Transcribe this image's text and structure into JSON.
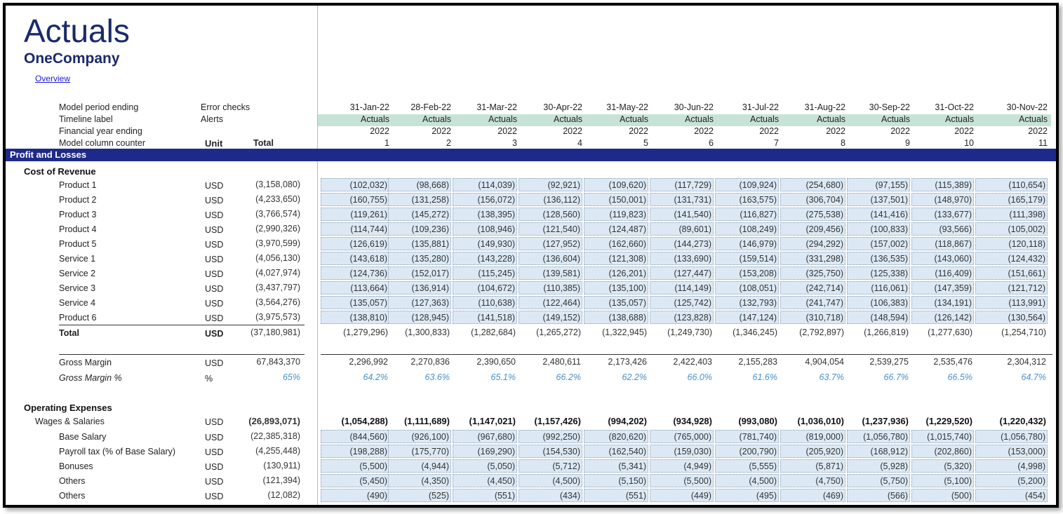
{
  "page": {
    "title": "Actuals",
    "subtitle": "OneCompany",
    "overview_link": "Overview"
  },
  "header": {
    "labels": [
      "Model period ending",
      "Timeline label",
      "Financial year ending",
      "Model column counter"
    ],
    "mid_labels": [
      "Error checks",
      "Alerts"
    ],
    "unit_header": "Unit",
    "total_header": "Total",
    "periods": [
      "31-Jan-22",
      "28-Feb-22",
      "31-Mar-22",
      "30-Apr-22",
      "31-May-22",
      "30-Jun-22",
      "31-Jul-22",
      "31-Aug-22",
      "30-Sep-22",
      "31-Oct-22",
      "30-Nov-22"
    ],
    "timeline": "Actuals",
    "fy": "2022",
    "counters": [
      "1",
      "2",
      "3",
      "4",
      "5",
      "6",
      "7",
      "8",
      "9",
      "10",
      "11"
    ]
  },
  "band": {
    "label": "Profit and Losses"
  },
  "cost_of_revenue": {
    "title": "Cost of Revenue",
    "rows": [
      {
        "label": "Product 1",
        "unit": "USD",
        "total": "(3,158,080)",
        "values": [
          "(102,032)",
          "(98,668)",
          "(114,039)",
          "(92,921)",
          "(109,620)",
          "(117,729)",
          "(109,924)",
          "(254,680)",
          "(97,155)",
          "(115,389)",
          "(110,654)"
        ]
      },
      {
        "label": "Product 2",
        "unit": "USD",
        "total": "(4,233,650)",
        "values": [
          "(160,755)",
          "(131,258)",
          "(156,072)",
          "(136,112)",
          "(150,001)",
          "(131,731)",
          "(163,575)",
          "(306,704)",
          "(137,501)",
          "(148,970)",
          "(165,179)"
        ]
      },
      {
        "label": "Product 3",
        "unit": "USD",
        "total": "(3,766,574)",
        "values": [
          "(119,261)",
          "(145,272)",
          "(138,395)",
          "(128,560)",
          "(119,823)",
          "(141,540)",
          "(116,827)",
          "(275,538)",
          "(141,416)",
          "(133,677)",
          "(111,398)"
        ]
      },
      {
        "label": "Product 4",
        "unit": "USD",
        "total": "(2,990,326)",
        "values": [
          "(114,744)",
          "(109,236)",
          "(108,946)",
          "(121,540)",
          "(124,487)",
          "(89,601)",
          "(108,249)",
          "(209,456)",
          "(100,833)",
          "(93,566)",
          "(105,002)"
        ]
      },
      {
        "label": "Product 5",
        "unit": "USD",
        "total": "(3,970,599)",
        "values": [
          "(126,619)",
          "(135,881)",
          "(149,930)",
          "(127,952)",
          "(162,660)",
          "(144,273)",
          "(146,979)",
          "(294,292)",
          "(157,002)",
          "(118,867)",
          "(120,118)"
        ]
      },
      {
        "label": "Service 1",
        "unit": "USD",
        "total": "(4,056,130)",
        "values": [
          "(143,618)",
          "(135,280)",
          "(143,228)",
          "(136,604)",
          "(121,308)",
          "(133,690)",
          "(159,514)",
          "(331,298)",
          "(136,535)",
          "(143,060)",
          "(124,432)"
        ]
      },
      {
        "label": "Service 2",
        "unit": "USD",
        "total": "(4,027,974)",
        "values": [
          "(124,736)",
          "(152,017)",
          "(115,245)",
          "(139,581)",
          "(126,201)",
          "(127,447)",
          "(153,208)",
          "(325,750)",
          "(125,338)",
          "(116,409)",
          "(151,661)"
        ]
      },
      {
        "label": "Service 3",
        "unit": "USD",
        "total": "(3,437,797)",
        "values": [
          "(113,664)",
          "(136,914)",
          "(104,672)",
          "(110,385)",
          "(135,100)",
          "(114,149)",
          "(108,051)",
          "(242,714)",
          "(116,061)",
          "(147,359)",
          "(121,712)"
        ]
      },
      {
        "label": "Service 4",
        "unit": "USD",
        "total": "(3,564,276)",
        "values": [
          "(135,057)",
          "(127,363)",
          "(110,638)",
          "(122,464)",
          "(135,057)",
          "(125,742)",
          "(132,793)",
          "(241,747)",
          "(106,383)",
          "(134,191)",
          "(113,991)"
        ]
      },
      {
        "label": "Product 6",
        "unit": "USD",
        "total": "(3,975,573)",
        "values": [
          "(138,810)",
          "(128,945)",
          "(141,518)",
          "(149,152)",
          "(138,688)",
          "(123,828)",
          "(147,124)",
          "(310,718)",
          "(148,594)",
          "(126,142)",
          "(130,564)"
        ]
      }
    ],
    "total": {
      "label": "Total",
      "unit": "USD",
      "total": "(37,180,981)",
      "values": [
        "(1,279,296)",
        "(1,300,833)",
        "(1,282,684)",
        "(1,265,272)",
        "(1,322,945)",
        "(1,249,730)",
        "(1,346,245)",
        "(2,792,897)",
        "(1,266,819)",
        "(1,277,630)",
        "(1,254,710)"
      ]
    }
  },
  "gross_margin": {
    "label": "Gross Margin",
    "unit": "USD",
    "total": "67,843,370",
    "values": [
      "2,296,992",
      "2,270,836",
      "2,390,650",
      "2,480,611",
      "2,173,426",
      "2,422,403",
      "2,155,283",
      "4,904,054",
      "2,539,275",
      "2,535,476",
      "2,304,312"
    ]
  },
  "gross_margin_pct": {
    "label": "Gross Margin %",
    "unit": "%",
    "total": "65%",
    "values": [
      "64.2%",
      "63.6%",
      "65.1%",
      "66.2%",
      "62.2%",
      "66.0%",
      "61.6%",
      "63.7%",
      "66.7%",
      "66.5%",
      "64.7%"
    ]
  },
  "opex": {
    "title": "Operating Expenses",
    "wages": {
      "label": "Wages & Salaries",
      "unit": "USD",
      "total": "(26,893,071)",
      "values": [
        "(1,054,288)",
        "(1,111,689)",
        "(1,147,021)",
        "(1,157,426)",
        "(994,202)",
        "(934,928)",
        "(993,080)",
        "(1,036,010)",
        "(1,237,936)",
        "(1,229,520)",
        "(1,220,432)"
      ]
    },
    "rows": [
      {
        "label": "Base Salary",
        "unit": "USD",
        "total": "(22,385,318)",
        "values": [
          "(844,560)",
          "(926,100)",
          "(967,680)",
          "(992,250)",
          "(820,620)",
          "(765,000)",
          "(781,740)",
          "(819,000)",
          "(1,056,780)",
          "(1,015,740)",
          "(1,056,780)"
        ]
      },
      {
        "label": "Payroll tax (% of Base Salary)",
        "unit": "USD",
        "total": "(4,255,448)",
        "values": [
          "(198,288)",
          "(175,770)",
          "(169,290)",
          "(154,530)",
          "(162,540)",
          "(159,030)",
          "(200,790)",
          "(205,920)",
          "(168,912)",
          "(202,860)",
          "(153,000)"
        ]
      },
      {
        "label": "Bonuses",
        "unit": "USD",
        "total": "(130,911)",
        "values": [
          "(5,500)",
          "(4,944)",
          "(5,050)",
          "(5,712)",
          "(5,341)",
          "(4,949)",
          "(5,555)",
          "(5,871)",
          "(5,928)",
          "(5,320)",
          "(4,998)"
        ]
      },
      {
        "label": "Others",
        "unit": "USD",
        "total": "(121,394)",
        "values": [
          "(5,450)",
          "(4,350)",
          "(4,450)",
          "(4,500)",
          "(5,150)",
          "(5,500)",
          "(4,500)",
          "(4,750)",
          "(5,750)",
          "(5,100)",
          "(5,200)"
        ]
      },
      {
        "label": "Others",
        "unit": "USD",
        "total": "(12,082)",
        "values": [
          "(490)",
          "(525)",
          "(551)",
          "(434)",
          "(551)",
          "(449)",
          "(495)",
          "(469)",
          "(566)",
          "(500)",
          "(454)"
        ]
      }
    ]
  }
}
